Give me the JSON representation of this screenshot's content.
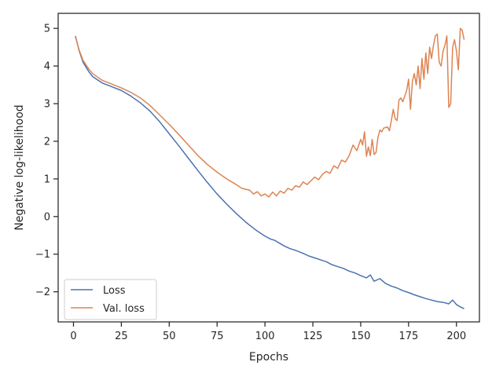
{
  "chart_data": {
    "type": "line",
    "title": "",
    "xlabel": "Epochs",
    "ylabel": "Negative log-likelihood",
    "xlim": [
      -8,
      212
    ],
    "ylim": [
      -2.8,
      5.4
    ],
    "xticks": [
      0,
      25,
      50,
      75,
      100,
      125,
      150,
      175,
      200
    ],
    "yticks": [
      -2,
      -1,
      0,
      1,
      2,
      3,
      4,
      5
    ],
    "tick_labels": {
      "x": [
        "0",
        "25",
        "50",
        "75",
        "100",
        "125",
        "150",
        "175",
        "200"
      ],
      "y": [
        "−2",
        "−1",
        "0",
        "1",
        "2",
        "3",
        "4",
        "5"
      ]
    },
    "grid": false,
    "legend_position": "lower-left",
    "series": [
      {
        "name": "Loss",
        "color": "#4c72b0",
        "points": [
          [
            1,
            4.8
          ],
          [
            3,
            4.4
          ],
          [
            5,
            4.1
          ],
          [
            8,
            3.85
          ],
          [
            10,
            3.72
          ],
          [
            15,
            3.55
          ],
          [
            20,
            3.45
          ],
          [
            25,
            3.35
          ],
          [
            30,
            3.2
          ],
          [
            35,
            3.02
          ],
          [
            40,
            2.8
          ],
          [
            45,
            2.52
          ],
          [
            50,
            2.2
          ],
          [
            55,
            1.88
          ],
          [
            60,
            1.55
          ],
          [
            65,
            1.22
          ],
          [
            70,
            0.9
          ],
          [
            75,
            0.6
          ],
          [
            80,
            0.33
          ],
          [
            85,
            0.08
          ],
          [
            90,
            -0.15
          ],
          [
            95,
            -0.35
          ],
          [
            100,
            -0.52
          ],
          [
            103,
            -0.6
          ],
          [
            105,
            -0.63
          ],
          [
            108,
            -0.72
          ],
          [
            110,
            -0.78
          ],
          [
            113,
            -0.85
          ],
          [
            116,
            -0.9
          ],
          [
            120,
            -0.98
          ],
          [
            123,
            -1.05
          ],
          [
            126,
            -1.1
          ],
          [
            129,
            -1.15
          ],
          [
            132,
            -1.2
          ],
          [
            135,
            -1.28
          ],
          [
            138,
            -1.33
          ],
          [
            141,
            -1.38
          ],
          [
            144,
            -1.45
          ],
          [
            147,
            -1.5
          ],
          [
            150,
            -1.57
          ],
          [
            153,
            -1.63
          ],
          [
            155,
            -1.55
          ],
          [
            157,
            -1.72
          ],
          [
            160,
            -1.65
          ],
          [
            163,
            -1.78
          ],
          [
            166,
            -1.85
          ],
          [
            169,
            -1.9
          ],
          [
            172,
            -1.97
          ],
          [
            175,
            -2.02
          ],
          [
            178,
            -2.08
          ],
          [
            181,
            -2.13
          ],
          [
            184,
            -2.18
          ],
          [
            187,
            -2.22
          ],
          [
            190,
            -2.26
          ],
          [
            193,
            -2.28
          ],
          [
            196,
            -2.32
          ],
          [
            198,
            -2.22
          ],
          [
            200,
            -2.34
          ],
          [
            202,
            -2.4
          ],
          [
            204,
            -2.45
          ]
        ]
      },
      {
        "name": "Val. loss",
        "color": "#dd8452",
        "points": [
          [
            1,
            4.78
          ],
          [
            3,
            4.42
          ],
          [
            5,
            4.15
          ],
          [
            8,
            3.92
          ],
          [
            10,
            3.8
          ],
          [
            15,
            3.62
          ],
          [
            20,
            3.52
          ],
          [
            25,
            3.42
          ],
          [
            30,
            3.3
          ],
          [
            35,
            3.15
          ],
          [
            40,
            2.95
          ],
          [
            45,
            2.7
          ],
          [
            50,
            2.45
          ],
          [
            55,
            2.18
          ],
          [
            60,
            1.9
          ],
          [
            65,
            1.62
          ],
          [
            70,
            1.38
          ],
          [
            75,
            1.18
          ],
          [
            80,
            1.0
          ],
          [
            85,
            0.85
          ],
          [
            88,
            0.75
          ],
          [
            92,
            0.7
          ],
          [
            94,
            0.6
          ],
          [
            96,
            0.66
          ],
          [
            98,
            0.55
          ],
          [
            100,
            0.6
          ],
          [
            102,
            0.52
          ],
          [
            104,
            0.65
          ],
          [
            106,
            0.55
          ],
          [
            108,
            0.68
          ],
          [
            110,
            0.62
          ],
          [
            112,
            0.75
          ],
          [
            114,
            0.7
          ],
          [
            116,
            0.82
          ],
          [
            118,
            0.78
          ],
          [
            120,
            0.92
          ],
          [
            122,
            0.85
          ],
          [
            124,
            0.95
          ],
          [
            126,
            1.05
          ],
          [
            128,
            0.98
          ],
          [
            130,
            1.12
          ],
          [
            132,
            1.2
          ],
          [
            134,
            1.15
          ],
          [
            136,
            1.35
          ],
          [
            138,
            1.28
          ],
          [
            140,
            1.5
          ],
          [
            142,
            1.45
          ],
          [
            144,
            1.62
          ],
          [
            146,
            1.9
          ],
          [
            148,
            1.75
          ],
          [
            150,
            2.05
          ],
          [
            151,
            1.9
          ],
          [
            152,
            2.25
          ],
          [
            153,
            1.6
          ],
          [
            154,
            1.85
          ],
          [
            155,
            1.62
          ],
          [
            156,
            2.05
          ],
          [
            157,
            1.65
          ],
          [
            158,
            1.7
          ],
          [
            159,
            2.1
          ],
          [
            160,
            2.3
          ],
          [
            161,
            2.25
          ],
          [
            162,
            2.35
          ],
          [
            164,
            2.38
          ],
          [
            165,
            2.28
          ],
          [
            166,
            2.55
          ],
          [
            167,
            2.85
          ],
          [
            168,
            2.6
          ],
          [
            169,
            2.55
          ],
          [
            170,
            3.1
          ],
          [
            171,
            3.15
          ],
          [
            172,
            3.05
          ],
          [
            173,
            3.2
          ],
          [
            174,
            3.35
          ],
          [
            175,
            3.65
          ],
          [
            176,
            2.85
          ],
          [
            177,
            3.6
          ],
          [
            178,
            3.8
          ],
          [
            179,
            3.5
          ],
          [
            180,
            4.0
          ],
          [
            181,
            3.4
          ],
          [
            182,
            4.2
          ],
          [
            183,
            3.65
          ],
          [
            184,
            4.35
          ],
          [
            185,
            3.8
          ],
          [
            186,
            4.5
          ],
          [
            187,
            4.2
          ],
          [
            188,
            4.55
          ],
          [
            189,
            4.8
          ],
          [
            190,
            4.85
          ],
          [
            191,
            4.1
          ],
          [
            192,
            4.0
          ],
          [
            193,
            4.4
          ],
          [
            194,
            4.55
          ],
          [
            195,
            4.8
          ],
          [
            196,
            2.9
          ],
          [
            197,
            3.0
          ],
          [
            198,
            4.5
          ],
          [
            199,
            4.7
          ],
          [
            200,
            4.4
          ],
          [
            201,
            3.9
          ],
          [
            202,
            5.0
          ],
          [
            203,
            4.95
          ],
          [
            204,
            4.7
          ]
        ]
      }
    ]
  }
}
